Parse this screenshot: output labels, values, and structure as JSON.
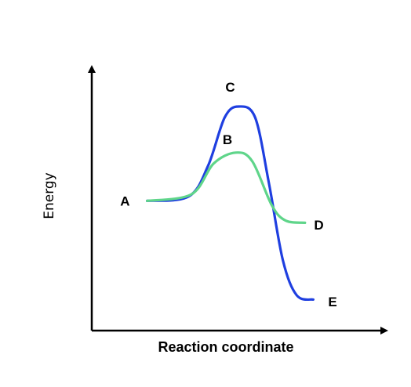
{
  "chart_data": {
    "type": "line",
    "title": "",
    "xlabel": "Reaction coordinate",
    "ylabel": "Energy",
    "xlim": [
      0,
      10
    ],
    "ylim": [
      0,
      10
    ],
    "grid": false,
    "x_ticks": false,
    "y_ticks": false,
    "series": [
      {
        "color": "#1f3fe0",
        "points": [
          [
            2.0,
            5.2
          ],
          [
            3.5,
            5.4
          ],
          [
            4.2,
            6.8
          ],
          [
            4.8,
            9.0
          ],
          [
            5.3,
            9.5
          ],
          [
            5.9,
            9.0
          ],
          [
            6.4,
            6.0
          ],
          [
            6.9,
            2.5
          ],
          [
            7.4,
            0.9
          ],
          [
            8.0,
            0.7
          ]
        ],
        "x": [
          2.0,
          3.5,
          4.2,
          4.8,
          5.3,
          5.9,
          6.4,
          6.9,
          7.4,
          8.0
        ],
        "y": [
          5.2,
          5.4,
          6.8,
          9.0,
          9.5,
          9.0,
          6.0,
          2.5,
          0.9,
          0.7
        ]
      },
      {
        "color": "#5fd58a",
        "points": [
          [
            2.0,
            5.2
          ],
          [
            3.6,
            5.5
          ],
          [
            4.4,
            6.9
          ],
          [
            5.2,
            7.4
          ],
          [
            5.8,
            7.0
          ],
          [
            6.5,
            5.0
          ],
          [
            7.0,
            4.3
          ],
          [
            7.7,
            4.2
          ]
        ],
        "x": [
          2.0,
          3.6,
          4.4,
          5.2,
          5.8,
          6.5,
          7.0,
          7.7
        ],
        "y": [
          5.2,
          5.5,
          6.9,
          7.4,
          7.0,
          5.0,
          4.3,
          4.2
        ]
      }
    ],
    "annotations": [
      {
        "text": "A",
        "x": 1.2,
        "y": 5.2
      },
      {
        "text": "C",
        "x": 5.0,
        "y": 10.4
      },
      {
        "text": "B",
        "x": 4.9,
        "y": 8.0
      },
      {
        "text": "D",
        "x": 8.2,
        "y": 4.1
      },
      {
        "text": "E",
        "x": 8.7,
        "y": 0.6
      }
    ]
  }
}
